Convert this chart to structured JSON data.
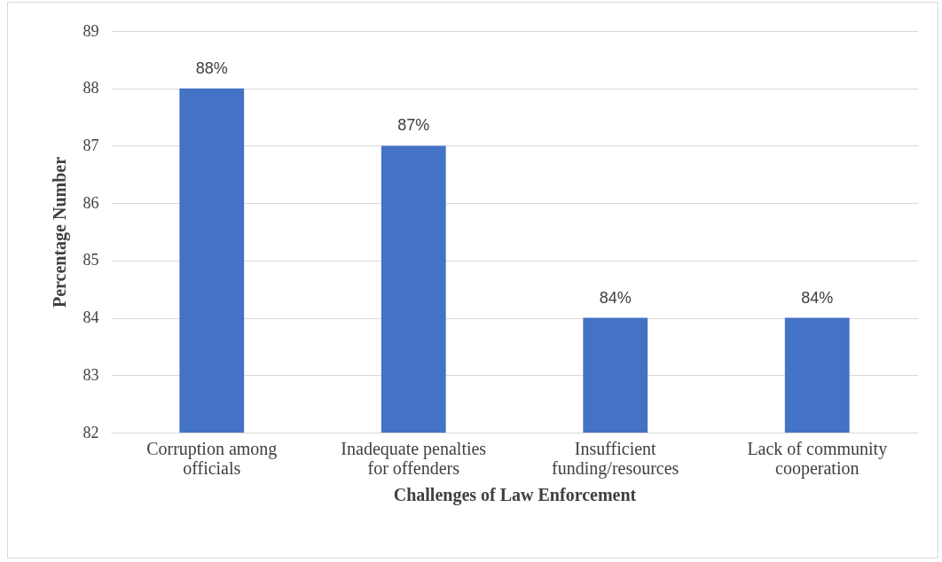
{
  "chart_data": {
    "type": "bar",
    "categories": [
      "Corruption among officials",
      "Inadequate penalties for offenders",
      "Insufficient funding/resources",
      "Lack of community cooperation"
    ],
    "values": [
      88,
      87,
      84,
      84
    ],
    "value_labels": [
      "88%",
      "87%",
      "84%",
      "84%"
    ],
    "color": "#4472c4",
    "xlabel": "Challenges of Law Enforcement",
    "ylabel": "Percentage Number",
    "ylim": [
      82,
      89
    ],
    "yticks": [
      82,
      83,
      84,
      85,
      86,
      87,
      88,
      89
    ],
    "grid": "y"
  }
}
